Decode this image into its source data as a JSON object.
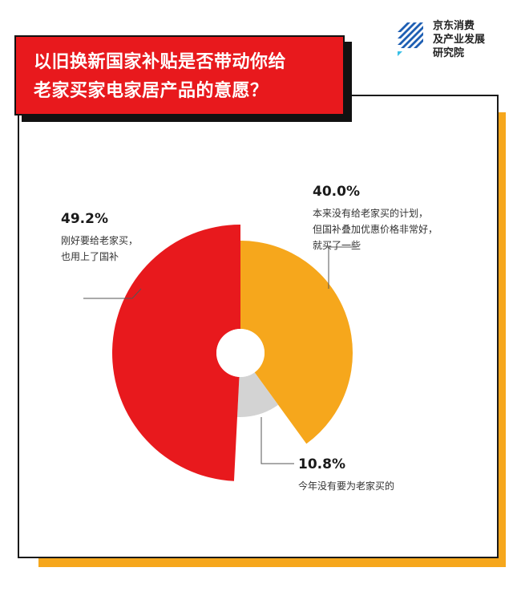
{
  "title_lines": [
    "以旧换新国家补贴是否带动你给",
    "老家买家电家居产品的意愿？"
  ],
  "logo": {
    "line1": "京东消费",
    "line2": "及产业发展",
    "line3": "研究院",
    "icon": "stripes-logo-icon"
  },
  "colors": {
    "red": "#e8191d",
    "orange": "#f6a71c",
    "gray": "#d3d3d3",
    "frame": "#f6a71c"
  },
  "chart_data": {
    "type": "pie",
    "style": "donut",
    "series": [
      {
        "value": 49.2,
        "label": "49.2%",
        "description_lines": [
          "刚好要给老家买，",
          "也用上了国补"
        ],
        "color": "#e8191d"
      },
      {
        "value": 40.0,
        "label": "40.0%",
        "description_lines": [
          "本来没有给老家买的计划，",
          "但国补叠加优惠价格非常好，",
          "就买了一些"
        ],
        "color": "#f6a71c"
      },
      {
        "value": 10.8,
        "label": "10.8%",
        "description_lines": [
          "今年没有要为老家买的"
        ],
        "color": "#d3d3d3"
      }
    ]
  }
}
